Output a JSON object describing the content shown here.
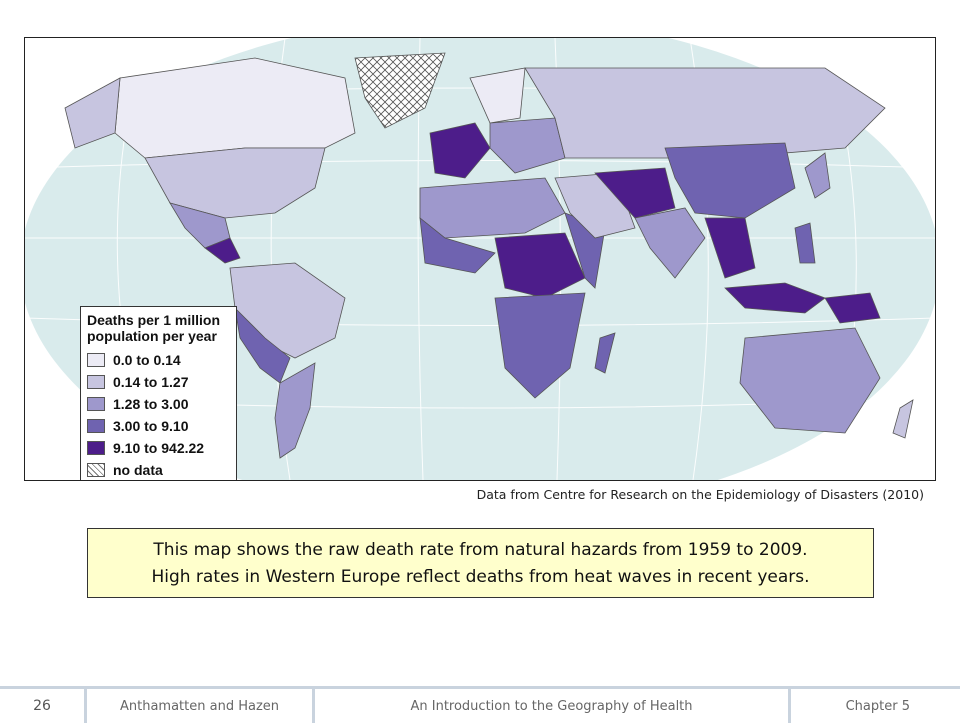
{
  "legend": {
    "title": "Deaths per 1 million population per year",
    "items": [
      {
        "label": "0.0 to 0.14",
        "color": "#ecebf5"
      },
      {
        "label": "0.14 to 1.27",
        "color": "#c7c5e0"
      },
      {
        "label": "1.28 to 3.00",
        "color": "#9e98cc"
      },
      {
        "label": "3.00 to 9.10",
        "color": "#6f63b0"
      },
      {
        "label": "9.10 to 942.22",
        "color": "#4d1d8a"
      },
      {
        "label": "no data",
        "color": "hatch"
      }
    ]
  },
  "source": "Data from Centre for Research on the Epidemiology of Disasters (2010)",
  "caption": {
    "line1": "This map shows the raw death rate from natural hazards from 1959 to 2009.",
    "line2": "High rates in Western Europe reflect deaths from heat waves in recent years."
  },
  "footer": {
    "page": "26",
    "authors": "Anthamatten and Hazen",
    "title": "An Introduction to the Geography of Health",
    "chapter": "Chapter 5"
  }
}
